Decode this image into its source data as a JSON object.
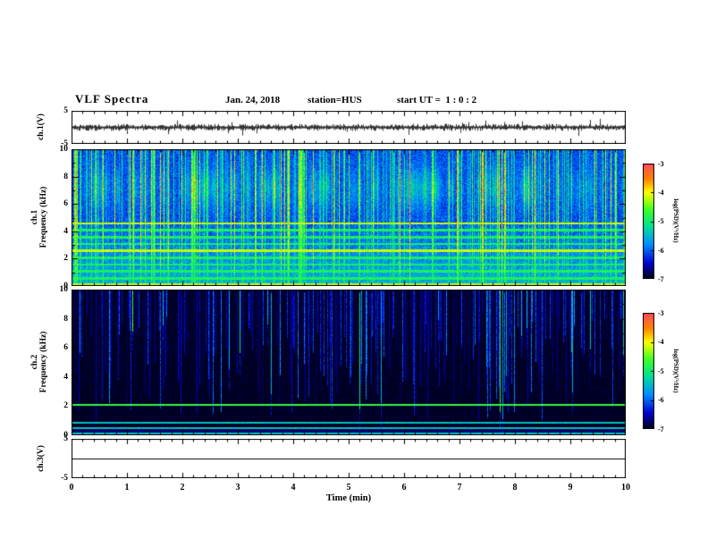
{
  "header": {
    "title": "VLF Spectra",
    "date": "Jan. 24, 2018",
    "station": "station=HUS",
    "start_ut": "start UT =  1 : 0 : 2"
  },
  "xaxis": {
    "label": "Time (min)",
    "ticks": [
      "0",
      "1",
      "2",
      "3",
      "4",
      "5",
      "6",
      "7",
      "8",
      "9",
      "10"
    ]
  },
  "wave1": {
    "label": "ch.1(V)",
    "ymax": "5",
    "ymin": "-5"
  },
  "spec1": {
    "channel": "ch.1",
    "ylabel": "Frequency (kHz)",
    "yticks": [
      "10",
      "8",
      "6",
      "4",
      "2",
      "0"
    ]
  },
  "spec2": {
    "channel": "ch.2",
    "ylabel": "Frequency (kHz)",
    "yticks": [
      "10",
      "8",
      "6",
      "4",
      "2",
      "0"
    ]
  },
  "wave3": {
    "label": "ch.3(V)",
    "ymax": "5",
    "ymin": "-5"
  },
  "colorbar": {
    "label": "log(PSD)(V²/Hz)",
    "ticks": [
      "-3",
      "-4",
      "-5",
      "-6",
      "-7"
    ]
  },
  "chart_data": [
    {
      "type": "line",
      "panel": "ch1-waveform",
      "ylabel": "ch.1(V)",
      "ylim": [
        -5,
        5
      ],
      "xlim_min": [
        0,
        10
      ],
      "description": "Broadband noise trace centred on 0 V, typical amplitude about ±0.5 V, with sporadic impulsive spikes reaching roughly ±2.5 V throughout the 10 minutes."
    },
    {
      "type": "heatmap",
      "panel": "ch1-spectrogram",
      "ylabel": "Frequency (kHz)",
      "ylim": [
        0,
        10
      ],
      "xlim_min": [
        0,
        10
      ],
      "colorbar_label": "log(PSD)(V²/Hz)",
      "colorbar_range": [
        -7,
        -3
      ],
      "background_level": -6.35,
      "enhanced_below_khz": 5,
      "horizontal_bands_khz": [
        0.15,
        0.6,
        1.1,
        1.6,
        2.1,
        2.6,
        3.1,
        3.6,
        4.1,
        4.6
      ],
      "strong_bands_khz": [
        0.15,
        2.6,
        4.6
      ],
      "emission_patch_khz": 7.2,
      "streaks": "dense vertical sferic streaks (cyan-green) across full band, strongest 5-10 kHz"
    },
    {
      "type": "heatmap",
      "panel": "ch2-spectrogram",
      "ylabel": "Frequency (kHz)",
      "ylim": [
        0,
        10
      ],
      "xlim_min": [
        0,
        10
      ],
      "colorbar_label": "log(PSD)(V²/Hz)",
      "colorbar_range": [
        -7,
        -3
      ],
      "background_level": -7.0,
      "horizontal_bands_khz": [
        0.15,
        0.5,
        0.9,
        2.1
      ],
      "strong_bands_khz": [
        2.1
      ],
      "streaks": "sparse vertical blue streaks descending from 10 kHz over a black background, occasional bright green full-height streaks"
    },
    {
      "type": "line",
      "panel": "ch3-waveform",
      "ylabel": "ch.3(V)",
      "ylim": [
        -5,
        5
      ],
      "description": "Flat line at 0 V (channel inactive)."
    }
  ]
}
